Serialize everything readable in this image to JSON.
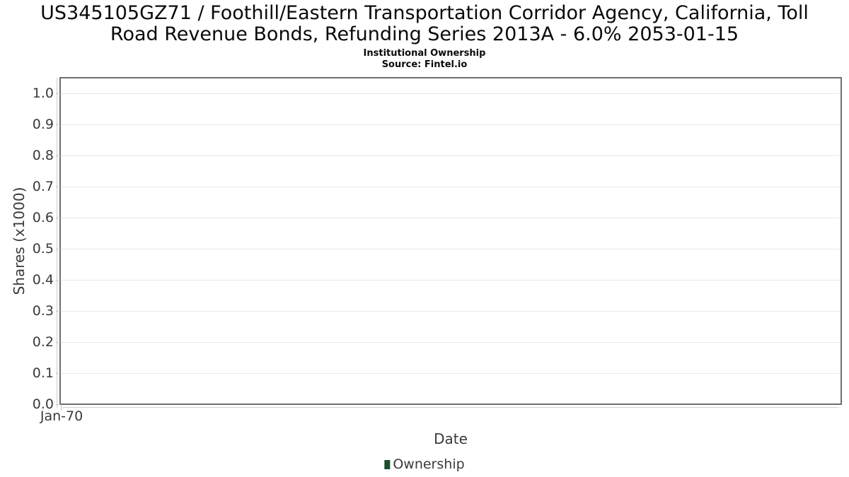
{
  "header": {
    "title_line1": "US345105GZ71 / Foothill/Eastern Transportation Corridor Agency, California, Toll",
    "title_line2": "Road Revenue Bonds, Refunding Series 2013A - 6.0% 2053-01-15",
    "subtitle": "Institutional Ownership",
    "source": "Source: Fintel.io"
  },
  "chart_data": {
    "type": "line",
    "title": "US345105GZ71 / Foothill/Eastern Transportation Corridor Agency, California, Toll Road Revenue Bonds, Refunding Series 2013A - 6.0% 2053-01-15",
    "subtitle": "Institutional Ownership",
    "source": "Source: Fintel.io",
    "xlabel": "Date",
    "ylabel": "Shares (x1000)",
    "x_ticks": [
      "Jan-70"
    ],
    "y_ticks": [
      0.0,
      0.1,
      0.2,
      0.3,
      0.4,
      0.5,
      0.6,
      0.7,
      0.8,
      0.9,
      1.0
    ],
    "y_tick_labels": [
      "0.0",
      "0.1",
      "0.2",
      "0.3",
      "0.4",
      "0.5",
      "0.6",
      "0.7",
      "0.8",
      "0.9",
      "1.0"
    ],
    "ylim": [
      0.0,
      1.05
    ],
    "grid": "horizontal",
    "legend_position": "bottom-center",
    "series": [
      {
        "name": "Ownership",
        "color": "#1b4d2e",
        "x": [],
        "values": []
      }
    ]
  },
  "colors": {
    "plot_border": "#6f6f6f",
    "gridline": "#e8e8e8",
    "axis_line": "#cfcfcf",
    "axis_text": "#3a3a3a",
    "title_text": "#0a0a0a",
    "legend_swatch": "#1b4d2e",
    "background": "#ffffff"
  }
}
